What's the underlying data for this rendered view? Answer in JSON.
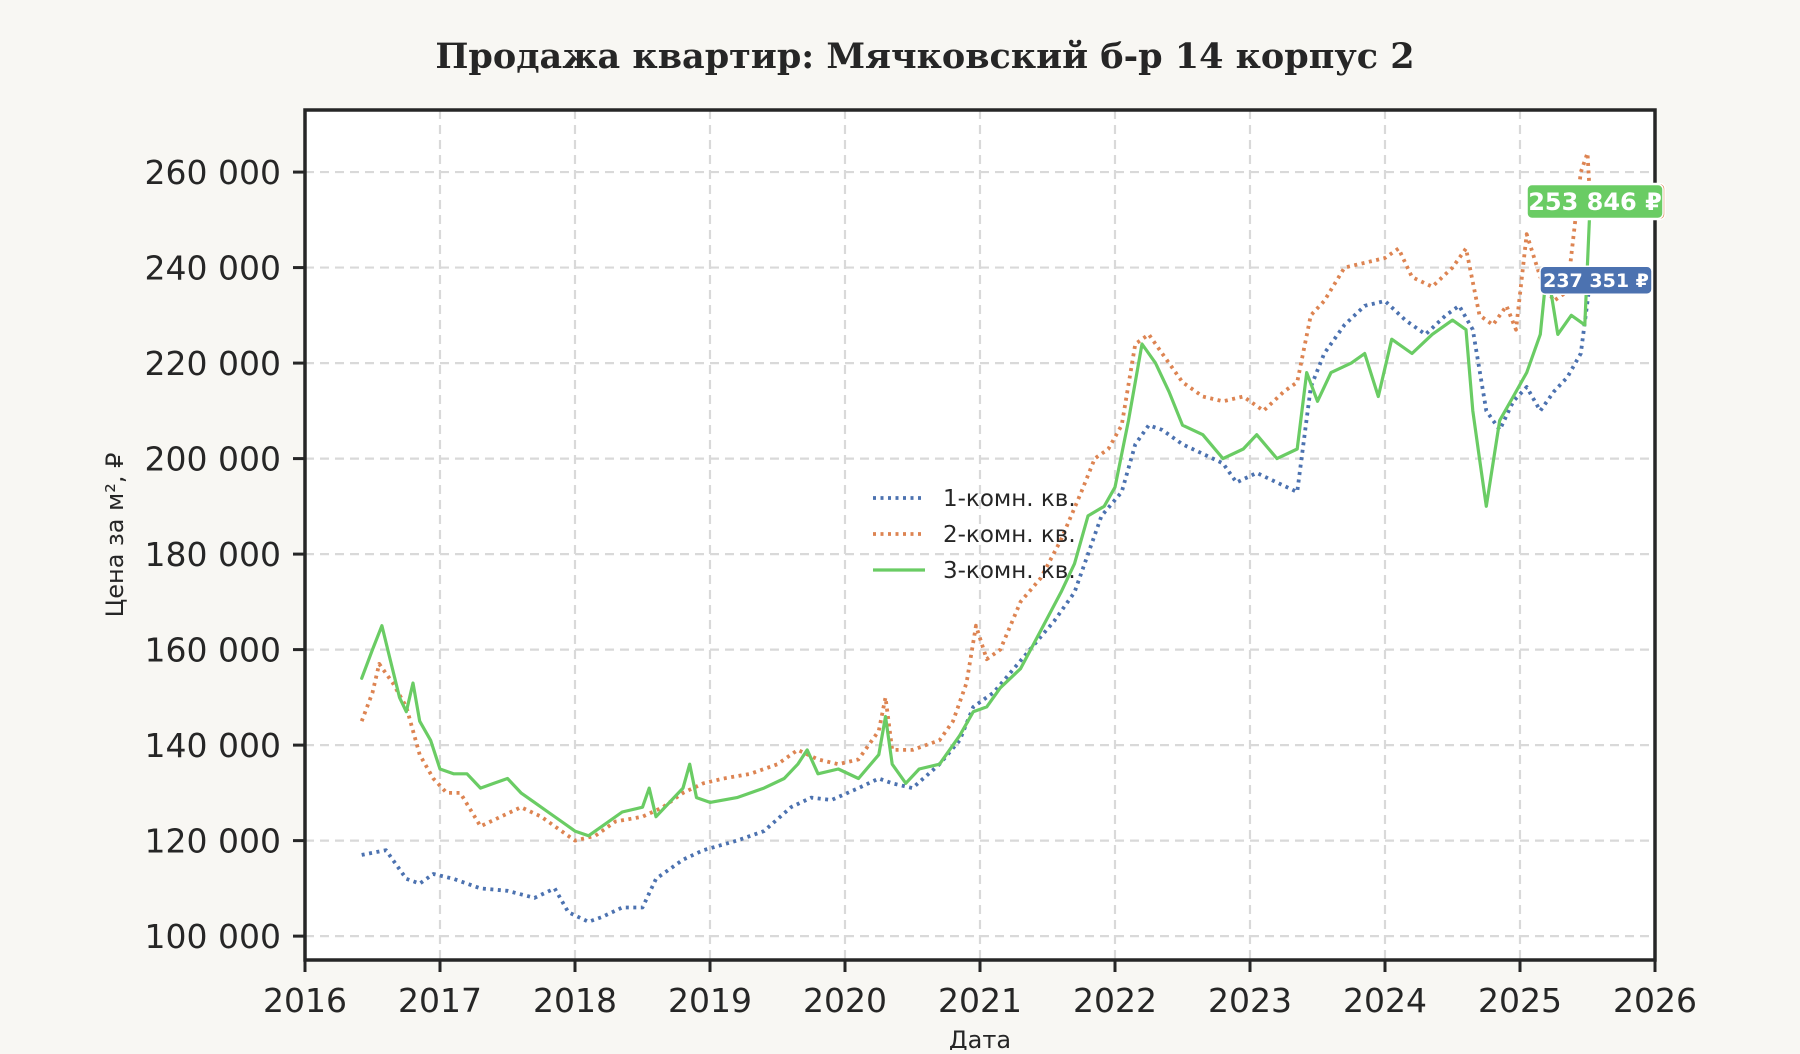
{
  "chart_data": {
    "type": "line",
    "title": "Продажа квартир: Мячковский б-р 14 корпус 2",
    "xlabel": "Дата",
    "ylabel": "Цена за м², ₽",
    "xlim": [
      2016,
      2026
    ],
    "ylim": [
      95000,
      273000
    ],
    "x_ticks": [
      2016,
      2017,
      2018,
      2019,
      2020,
      2021,
      2022,
      2023,
      2024,
      2025,
      2026
    ],
    "x_tick_labels": [
      "2016",
      "2017",
      "2018",
      "2019",
      "2020",
      "2021",
      "2022",
      "2023",
      "2024",
      "2025",
      "2026"
    ],
    "y_ticks": [
      100000,
      120000,
      140000,
      160000,
      180000,
      200000,
      220000,
      240000,
      260000
    ],
    "y_tick_labels": [
      "100 000",
      "120 000",
      "140 000",
      "160 000",
      "180 000",
      "200 000",
      "220 000",
      "240 000",
      "260 000"
    ],
    "grid": true,
    "legend_position": "center",
    "series": [
      {
        "name": "1-комн. кв.",
        "color": "#4c72b0",
        "style": "dotted",
        "points": [
          [
            2016.42,
            117000
          ],
          [
            2016.6,
            118000
          ],
          [
            2016.75,
            112000
          ],
          [
            2016.85,
            111000
          ],
          [
            2016.95,
            113000
          ],
          [
            2017.1,
            112000
          ],
          [
            2017.3,
            110000
          ],
          [
            2017.5,
            109500
          ],
          [
            2017.7,
            108000
          ],
          [
            2017.85,
            110000
          ],
          [
            2017.95,
            105000
          ],
          [
            2018.1,
            103000
          ],
          [
            2018.2,
            104000
          ],
          [
            2018.35,
            106000
          ],
          [
            2018.5,
            106000
          ],
          [
            2018.6,
            112000
          ],
          [
            2018.8,
            116000
          ],
          [
            2018.95,
            118000
          ],
          [
            2019.2,
            120000
          ],
          [
            2019.4,
            122000
          ],
          [
            2019.6,
            127000
          ],
          [
            2019.75,
            129000
          ],
          [
            2019.9,
            128500
          ],
          [
            2020.1,
            131000
          ],
          [
            2020.25,
            133000
          ],
          [
            2020.35,
            132000
          ],
          [
            2020.5,
            131000
          ],
          [
            2020.7,
            136000
          ],
          [
            2020.85,
            141000
          ],
          [
            2020.95,
            148000
          ],
          [
            2021.1,
            151000
          ],
          [
            2021.25,
            156000
          ],
          [
            2021.4,
            161000
          ],
          [
            2021.55,
            166000
          ],
          [
            2021.7,
            172000
          ],
          [
            2021.8,
            180000
          ],
          [
            2021.9,
            188000
          ],
          [
            2022.05,
            193000
          ],
          [
            2022.15,
            203000
          ],
          [
            2022.25,
            207000
          ],
          [
            2022.35,
            206000
          ],
          [
            2022.5,
            203000
          ],
          [
            2022.65,
            201000
          ],
          [
            2022.8,
            199000
          ],
          [
            2022.9,
            195000
          ],
          [
            2023.05,
            197000
          ],
          [
            2023.2,
            195000
          ],
          [
            2023.35,
            193000
          ],
          [
            2023.45,
            215000
          ],
          [
            2023.55,
            222000
          ],
          [
            2023.7,
            228000
          ],
          [
            2023.85,
            232000
          ],
          [
            2024.0,
            233000
          ],
          [
            2024.15,
            229000
          ],
          [
            2024.3,
            226000
          ],
          [
            2024.45,
            230000
          ],
          [
            2024.55,
            232000
          ],
          [
            2024.65,
            227000
          ],
          [
            2024.75,
            210000
          ],
          [
            2024.85,
            206000
          ],
          [
            2024.95,
            212000
          ],
          [
            2025.05,
            215000
          ],
          [
            2025.15,
            210000
          ],
          [
            2025.25,
            214000
          ],
          [
            2025.35,
            217000
          ],
          [
            2025.45,
            222000
          ],
          [
            2025.52,
            237351
          ]
        ]
      },
      {
        "name": "2-комн. кв.",
        "color": "#dd8452",
        "style": "dotted",
        "points": [
          [
            2016.42,
            145000
          ],
          [
            2016.5,
            151000
          ],
          [
            2016.55,
            157000
          ],
          [
            2016.65,
            153000
          ],
          [
            2016.75,
            148000
          ],
          [
            2016.85,
            138000
          ],
          [
            2016.95,
            133000
          ],
          [
            2017.05,
            130000
          ],
          [
            2017.15,
            130000
          ],
          [
            2017.3,
            123000
          ],
          [
            2017.45,
            125000
          ],
          [
            2017.6,
            127000
          ],
          [
            2017.75,
            125000
          ],
          [
            2017.9,
            122000
          ],
          [
            2018.0,
            120000
          ],
          [
            2018.15,
            121000
          ],
          [
            2018.3,
            124000
          ],
          [
            2018.5,
            125000
          ],
          [
            2018.65,
            127000
          ],
          [
            2018.8,
            130000
          ],
          [
            2018.95,
            132000
          ],
          [
            2019.1,
            133000
          ],
          [
            2019.3,
            134000
          ],
          [
            2019.5,
            136000
          ],
          [
            2019.65,
            139000
          ],
          [
            2019.8,
            137000
          ],
          [
            2019.95,
            136000
          ],
          [
            2020.1,
            137000
          ],
          [
            2020.25,
            143000
          ],
          [
            2020.3,
            150000
          ],
          [
            2020.35,
            139000
          ],
          [
            2020.5,
            139000
          ],
          [
            2020.7,
            141000
          ],
          [
            2020.8,
            145000
          ],
          [
            2020.9,
            153000
          ],
          [
            2020.97,
            165000
          ],
          [
            2021.05,
            158000
          ],
          [
            2021.15,
            160000
          ],
          [
            2021.3,
            170000
          ],
          [
            2021.45,
            175000
          ],
          [
            2021.6,
            183000
          ],
          [
            2021.75,
            193000
          ],
          [
            2021.85,
            200000
          ],
          [
            2021.95,
            202000
          ],
          [
            2022.05,
            207000
          ],
          [
            2022.15,
            224000
          ],
          [
            2022.25,
            226000
          ],
          [
            2022.35,
            222000
          ],
          [
            2022.5,
            216000
          ],
          [
            2022.65,
            213000
          ],
          [
            2022.8,
            212000
          ],
          [
            2022.95,
            213000
          ],
          [
            2023.1,
            210000
          ],
          [
            2023.25,
            214000
          ],
          [
            2023.35,
            216000
          ],
          [
            2023.45,
            230000
          ],
          [
            2023.55,
            233000
          ],
          [
            2023.7,
            240000
          ],
          [
            2023.85,
            241000
          ],
          [
            2024.0,
            242000
          ],
          [
            2024.1,
            244000
          ],
          [
            2024.2,
            238000
          ],
          [
            2024.35,
            236000
          ],
          [
            2024.5,
            240000
          ],
          [
            2024.6,
            244000
          ],
          [
            2024.7,
            230000
          ],
          [
            2024.8,
            228000
          ],
          [
            2024.9,
            232000
          ],
          [
            2024.97,
            227000
          ],
          [
            2025.05,
            247000
          ],
          [
            2025.15,
            238000
          ],
          [
            2025.25,
            233000
          ],
          [
            2025.35,
            235000
          ],
          [
            2025.45,
            260000
          ],
          [
            2025.5,
            264000
          ],
          [
            2025.52,
            253846
          ]
        ]
      },
      {
        "name": "3-комн. кв.",
        "color": "#6acc64",
        "style": "solid",
        "points": [
          [
            2016.42,
            154000
          ],
          [
            2016.5,
            160000
          ],
          [
            2016.57,
            165000
          ],
          [
            2016.63,
            158000
          ],
          [
            2016.7,
            150000
          ],
          [
            2016.75,
            147000
          ],
          [
            2016.8,
            153000
          ],
          [
            2016.85,
            145000
          ],
          [
            2016.93,
            141000
          ],
          [
            2017.0,
            135000
          ],
          [
            2017.1,
            134000
          ],
          [
            2017.2,
            134000
          ],
          [
            2017.3,
            131000
          ],
          [
            2017.4,
            132000
          ],
          [
            2017.5,
            133000
          ],
          [
            2017.6,
            130000
          ],
          [
            2017.7,
            128000
          ],
          [
            2017.8,
            126000
          ],
          [
            2017.9,
            124000
          ],
          [
            2018.0,
            122000
          ],
          [
            2018.1,
            121000
          ],
          [
            2018.2,
            123000
          ],
          [
            2018.35,
            126000
          ],
          [
            2018.5,
            127000
          ],
          [
            2018.55,
            131000
          ],
          [
            2018.6,
            125000
          ],
          [
            2018.7,
            128000
          ],
          [
            2018.8,
            131000
          ],
          [
            2018.85,
            136000
          ],
          [
            2018.9,
            129000
          ],
          [
            2019.0,
            128000
          ],
          [
            2019.2,
            129000
          ],
          [
            2019.4,
            131000
          ],
          [
            2019.55,
            133000
          ],
          [
            2019.65,
            136000
          ],
          [
            2019.72,
            139000
          ],
          [
            2019.8,
            134000
          ],
          [
            2019.95,
            135000
          ],
          [
            2020.1,
            133000
          ],
          [
            2020.25,
            138000
          ],
          [
            2020.3,
            146000
          ],
          [
            2020.35,
            136000
          ],
          [
            2020.45,
            132000
          ],
          [
            2020.55,
            135000
          ],
          [
            2020.7,
            136000
          ],
          [
            2020.85,
            142000
          ],
          [
            2020.95,
            147000
          ],
          [
            2021.05,
            148000
          ],
          [
            2021.15,
            152000
          ],
          [
            2021.3,
            156000
          ],
          [
            2021.45,
            164000
          ],
          [
            2021.6,
            172000
          ],
          [
            2021.7,
            178000
          ],
          [
            2021.8,
            188000
          ],
          [
            2021.92,
            190000
          ],
          [
            2022.0,
            194000
          ],
          [
            2022.1,
            208000
          ],
          [
            2022.2,
            224000
          ],
          [
            2022.3,
            220000
          ],
          [
            2022.4,
            214000
          ],
          [
            2022.5,
            207000
          ],
          [
            2022.65,
            205000
          ],
          [
            2022.8,
            200000
          ],
          [
            2022.95,
            202000
          ],
          [
            2023.05,
            205000
          ],
          [
            2023.2,
            200000
          ],
          [
            2023.35,
            202000
          ],
          [
            2023.42,
            218000
          ],
          [
            2023.5,
            212000
          ],
          [
            2023.6,
            218000
          ],
          [
            2023.75,
            220000
          ],
          [
            2023.85,
            222000
          ],
          [
            2023.95,
            213000
          ],
          [
            2024.05,
            225000
          ],
          [
            2024.2,
            222000
          ],
          [
            2024.35,
            226000
          ],
          [
            2024.5,
            229000
          ],
          [
            2024.6,
            227000
          ],
          [
            2024.65,
            210000
          ],
          [
            2024.7,
            200000
          ],
          [
            2024.75,
            190000
          ],
          [
            2024.85,
            208000
          ],
          [
            2024.95,
            213000
          ],
          [
            2025.05,
            218000
          ],
          [
            2025.15,
            226000
          ],
          [
            2025.2,
            240000
          ],
          [
            2025.28,
            226000
          ],
          [
            2025.38,
            230000
          ],
          [
            2025.48,
            228000
          ],
          [
            2025.52,
            253846
          ]
        ]
      }
    ],
    "last_value_labels": [
      {
        "series": "1-комн. кв.",
        "text": "237 351 ₽",
        "value": 237351,
        "color": "#4c72b0"
      },
      {
        "series": "2-комн. кв.",
        "text": "253 846 ₽",
        "value": 253846,
        "color": "#dd8452"
      },
      {
        "series": "3-комн. кв.",
        "text": "253 846 ₽",
        "value": 253846,
        "color": "#6acc64"
      }
    ]
  }
}
